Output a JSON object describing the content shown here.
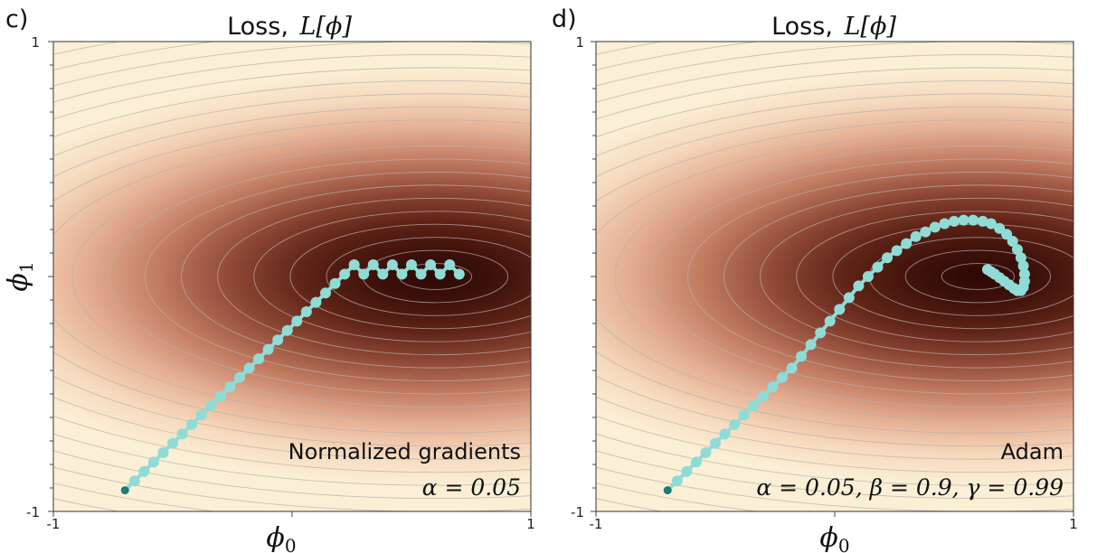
{
  "panels": [
    {
      "letter": "c)",
      "title_text": "Loss, ",
      "title_math": "L[ϕ]",
      "x_label": "ϕ",
      "x_label_sub": "0",
      "y_label": "ϕ",
      "y_label_sub": "1",
      "x_ticks": [
        "-1",
        "1"
      ],
      "y_ticks": [
        "1",
        "-1"
      ],
      "annotation_line1": "Normalized gradients",
      "annotation_line2": "α = 0.05"
    },
    {
      "letter": "d)",
      "title_text": "Loss, ",
      "title_math": "L[ϕ]",
      "x_label": "ϕ",
      "x_label_sub": "0",
      "y_label": "",
      "y_label_sub": "",
      "x_ticks": [
        "-1",
        "1"
      ],
      "y_ticks": [
        "1",
        "-1"
      ],
      "annotation_line1": "Adam",
      "annotation_line2": "α = 0.05, β = 0.9, γ = 0.99"
    }
  ],
  "chart_data": [
    {
      "type": "line",
      "title": "Loss, L[ϕ]",
      "xlabel": "ϕ₀",
      "ylabel": "ϕ₁",
      "xlim": [
        -1,
        1
      ],
      "ylim": [
        -1,
        1
      ],
      "background": "contour heatmap of loss, minimum near (0.6, 0.0)",
      "colors": {
        "path": "#8fdcd6",
        "start": "#1f7a74",
        "light": "#fbf0d6",
        "dark": "#2e0906",
        "contour": "#aaaaaa"
      },
      "series": [
        {
          "x": [
            -0.7,
            -0.66,
            -0.62,
            -0.58,
            -0.54,
            -0.5,
            -0.46,
            -0.42,
            -0.38,
            -0.34,
            -0.3,
            -0.26,
            -0.22,
            -0.18,
            -0.14,
            -0.1,
            -0.06,
            -0.02,
            0.02,
            0.06,
            0.1,
            0.14,
            0.18,
            0.22,
            0.26,
            0.3,
            0.34,
            0.38,
            0.42,
            0.46,
            0.5,
            0.54,
            0.58,
            0.62,
            0.66,
            0.7
          ],
          "y": [
            -0.91,
            -0.87,
            -0.83,
            -0.79,
            -0.75,
            -0.71,
            -0.67,
            -0.63,
            -0.59,
            -0.55,
            -0.51,
            -0.47,
            -0.43,
            -0.39,
            -0.35,
            -0.31,
            -0.27,
            -0.23,
            -0.19,
            -0.15,
            -0.11,
            -0.07,
            -0.03,
            0.01,
            0.05,
            0.01,
            0.05,
            0.01,
            0.05,
            0.01,
            0.05,
            0.01,
            0.05,
            0.01,
            0.05,
            0.01
          ]
        }
      ]
    },
    {
      "type": "line",
      "title": "Loss, L[ϕ]",
      "xlabel": "ϕ₀",
      "ylabel": "",
      "xlim": [
        -1,
        1
      ],
      "ylim": [
        -1,
        1
      ],
      "background": "contour heatmap of loss, minimum near (0.6, 0.0)",
      "colors": {
        "path": "#8fdcd6",
        "start": "#1f7a74",
        "light": "#fbf0d6",
        "dark": "#2e0906",
        "contour": "#aaaaaa"
      },
      "series": [
        {
          "x": [
            -0.7,
            -0.66,
            -0.62,
            -0.58,
            -0.54,
            -0.5,
            -0.46,
            -0.42,
            -0.38,
            -0.34,
            -0.3,
            -0.26,
            -0.22,
            -0.18,
            -0.14,
            -0.1,
            -0.06,
            -0.02,
            0.02,
            0.06,
            0.1,
            0.14,
            0.18,
            0.22,
            0.26,
            0.3,
            0.34,
            0.38,
            0.42,
            0.46,
            0.5,
            0.54,
            0.58,
            0.62,
            0.655,
            0.69,
            0.72,
            0.745,
            0.765,
            0.78,
            0.79,
            0.795,
            0.795,
            0.79,
            0.78,
            0.765,
            0.75,
            0.73,
            0.71,
            0.69,
            0.67,
            0.655,
            0.64
          ],
          "y": [
            -0.91,
            -0.87,
            -0.83,
            -0.79,
            -0.75,
            -0.71,
            -0.67,
            -0.63,
            -0.59,
            -0.55,
            -0.51,
            -0.47,
            -0.43,
            -0.39,
            -0.34,
            -0.29,
            -0.24,
            -0.19,
            -0.14,
            -0.09,
            -0.04,
            0.0,
            0.04,
            0.08,
            0.11,
            0.14,
            0.17,
            0.19,
            0.21,
            0.225,
            0.235,
            0.24,
            0.24,
            0.235,
            0.225,
            0.205,
            0.18,
            0.15,
            0.115,
            0.08,
            0.045,
            0.01,
            -0.02,
            -0.045,
            -0.06,
            -0.06,
            -0.05,
            -0.035,
            -0.02,
            -0.005,
            0.01,
            0.02,
            0.03
          ]
        }
      ]
    }
  ]
}
